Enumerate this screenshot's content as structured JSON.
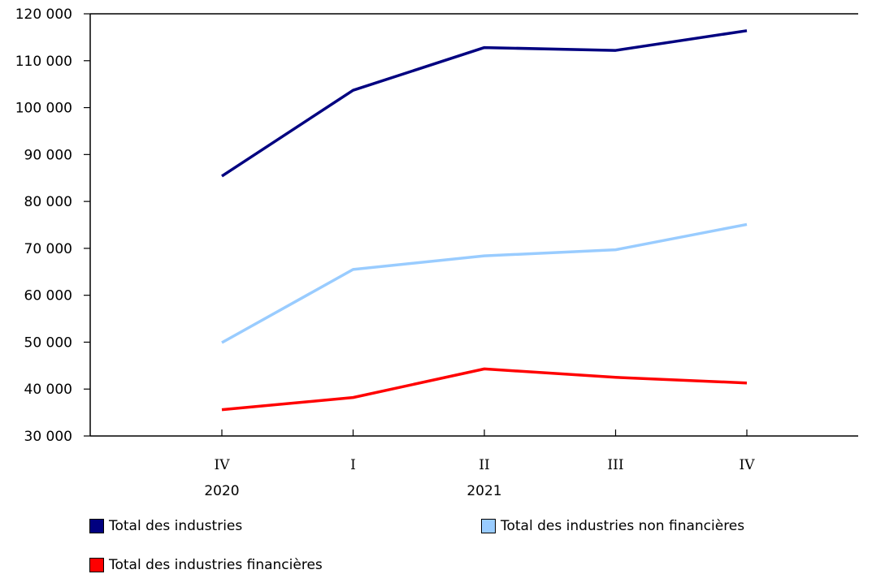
{
  "chart_data": {
    "type": "line",
    "categories": [
      "IV",
      "I",
      "II",
      "III",
      "IV"
    ],
    "year_labels": [
      {
        "label": "2020",
        "category_index": 0
      },
      {
        "label": "2021",
        "category_index": 2
      }
    ],
    "ylim": [
      30000,
      120000
    ],
    "yticks": [
      30000,
      40000,
      50000,
      60000,
      70000,
      80000,
      90000,
      100000,
      110000,
      120000
    ],
    "ytick_labels": [
      "30 000",
      "40 000",
      "50 000",
      "60 000",
      "70 000",
      "80 000",
      "90 000",
      "100 000",
      "110 000",
      "120 000"
    ],
    "grid": false,
    "legend_position": "bottom",
    "series": [
      {
        "name": "Total des industries",
        "color": "#000080",
        "values": [
          85400,
          103700,
          112800,
          112200,
          116400
        ]
      },
      {
        "name": "Total des industries non financières",
        "color": "#99ccff",
        "values": [
          49900,
          65500,
          68400,
          69700,
          75100
        ]
      },
      {
        "name": "Total des industries financières",
        "color": "#ff0000",
        "values": [
          35600,
          38200,
          44300,
          42500,
          41300
        ]
      }
    ]
  }
}
